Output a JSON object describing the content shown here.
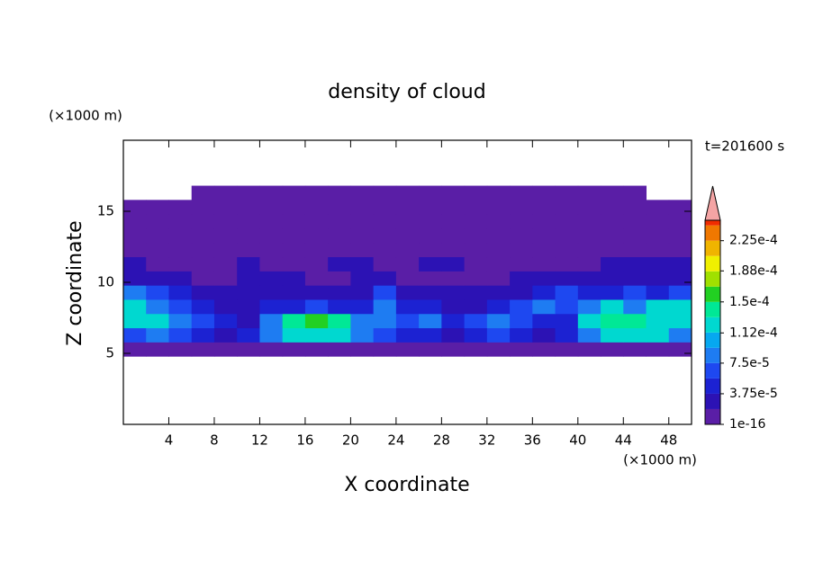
{
  "chart_data": {
    "type": "contour",
    "title": "density of cloud",
    "x_label": "X coordinate",
    "y_label": "Z coordinate",
    "x_unit": "(×1000 m)",
    "y_unit": "(×1000 m)",
    "annotation": "t=201600 s",
    "xlim": [
      0,
      50
    ],
    "ylim": [
      0,
      20
    ],
    "xticks": [
      4,
      8,
      12,
      16,
      20,
      24,
      28,
      32,
      36,
      40,
      44,
      48
    ],
    "yticks": [
      5,
      10,
      15
    ],
    "x": [
      1,
      3,
      5,
      7,
      9,
      11,
      13,
      15,
      17,
      19,
      21,
      23,
      25,
      27,
      29,
      31,
      33,
      35,
      37,
      39,
      41,
      43,
      45,
      47,
      49
    ],
    "y": [
      5.3,
      6.3,
      7.3,
      8.3,
      9.3,
      10.3,
      11.3,
      12.3,
      13.3,
      14.3,
      15.3,
      16.3
    ],
    "z": [
      [
        1e-05,
        1e-05,
        1e-05,
        1e-05,
        1e-05,
        1e-05,
        1e-05,
        1e-05,
        1e-05,
        1e-05,
        1e-05,
        1e-05,
        1e-05,
        1e-05,
        1e-05,
        1e-05,
        1e-05,
        1e-05,
        1e-05,
        1e-05,
        1e-05,
        1e-05,
        1e-05,
        1e-05,
        1e-05
      ],
      [
        7e-05,
        9e-05,
        7e-05,
        5e-05,
        3e-05,
        5e-05,
        9e-05,
        0.00012,
        0.00012,
        0.00012,
        9e-05,
        7e-05,
        5e-05,
        5e-05,
        3e-05,
        5e-05,
        7e-05,
        5e-05,
        3e-05,
        5e-05,
        9e-05,
        0.00012,
        0.00012,
        0.00012,
        9e-05
      ],
      [
        0.00012,
        0.00012,
        9e-05,
        7e-05,
        5e-05,
        3e-05,
        9e-05,
        0.00014,
        0.000155,
        0.00014,
        9e-05,
        9e-05,
        7e-05,
        9e-05,
        5e-05,
        7e-05,
        9e-05,
        7e-05,
        5e-05,
        5e-05,
        0.00012,
        0.00014,
        0.00014,
        0.00012,
        0.00012
      ],
      [
        0.00012,
        9e-05,
        7e-05,
        5e-05,
        3e-05,
        3e-05,
        5e-05,
        5e-05,
        7e-05,
        5e-05,
        5e-05,
        9e-05,
        5e-05,
        5e-05,
        3e-05,
        3e-05,
        5e-05,
        7e-05,
        9e-05,
        7e-05,
        9e-05,
        0.00012,
        9e-05,
        0.00012,
        0.00012
      ],
      [
        9e-05,
        7e-05,
        5e-05,
        3e-05,
        3e-05,
        3e-05,
        3e-05,
        3e-05,
        3e-05,
        3e-05,
        3e-05,
        7e-05,
        3e-05,
        3e-05,
        3e-05,
        3e-05,
        3e-05,
        3e-05,
        5e-05,
        7e-05,
        5e-05,
        5e-05,
        7e-05,
        5e-05,
        7e-05
      ],
      [
        3e-05,
        3e-05,
        3e-05,
        1e-05,
        1e-05,
        3e-05,
        3e-05,
        3e-05,
        1e-05,
        1e-05,
        3e-05,
        3e-05,
        1e-05,
        1e-05,
        1e-05,
        1e-05,
        1e-05,
        3e-05,
        3e-05,
        3e-05,
        3e-05,
        3e-05,
        3e-05,
        3e-05,
        3e-05
      ],
      [
        3e-05,
        1e-05,
        1e-05,
        1e-05,
        1e-05,
        3e-05,
        1e-05,
        1e-05,
        1e-05,
        3e-05,
        3e-05,
        1e-05,
        1e-05,
        3e-05,
        3e-05,
        1e-05,
        1e-05,
        1e-05,
        1e-05,
        1e-05,
        1e-05,
        3e-05,
        3e-05,
        3e-05,
        3e-05
      ],
      [
        1e-05,
        1e-05,
        1e-05,
        1e-05,
        1e-05,
        1e-05,
        1e-05,
        1e-05,
        1e-05,
        1e-05,
        1e-05,
        1e-05,
        1e-05,
        1e-05,
        1e-05,
        1e-05,
        1e-05,
        1e-05,
        1e-05,
        1e-05,
        1e-05,
        1e-05,
        1e-05,
        1e-05,
        1e-05
      ],
      [
        1e-05,
        1e-05,
        1e-05,
        1e-05,
        1e-05,
        1e-05,
        1e-05,
        1e-05,
        1e-05,
        1e-05,
        1e-05,
        1e-05,
        1e-05,
        1e-05,
        1e-05,
        1e-05,
        1e-05,
        1e-05,
        1e-05,
        1e-05,
        1e-05,
        1e-05,
        1e-05,
        1e-05,
        1e-05
      ],
      [
        1e-05,
        1e-05,
        1e-05,
        1e-05,
        1e-05,
        1e-05,
        1e-05,
        1e-05,
        1e-05,
        1e-05,
        1e-05,
        1e-05,
        1e-05,
        1e-05,
        1e-05,
        1e-05,
        1e-05,
        1e-05,
        1e-05,
        1e-05,
        1e-05,
        1e-05,
        1e-05,
        1e-05,
        1e-05
      ],
      [
        1e-05,
        1e-05,
        1e-05,
        1e-05,
        1e-05,
        1e-05,
        1e-05,
        1e-05,
        1e-05,
        1e-05,
        1e-05,
        1e-05,
        1e-05,
        1e-05,
        1e-05,
        1e-05,
        1e-05,
        1e-05,
        1e-05,
        1e-05,
        1e-05,
        1e-05,
        1e-05,
        1e-05,
        1e-05
      ],
      [
        null,
        null,
        null,
        1e-05,
        1e-05,
        1e-05,
        1e-05,
        1e-05,
        1e-05,
        1e-05,
        1e-05,
        1e-05,
        1e-05,
        1e-05,
        1e-05,
        1e-05,
        1e-05,
        1e-05,
        1e-05,
        1e-05,
        1e-05,
        1e-05,
        1e-05,
        null,
        null
      ]
    ],
    "colorbar": {
      "levels": [
        1e-16,
        1.875e-05,
        3.75e-05,
        5.625e-05,
        7.5e-05,
        9.375e-05,
        0.0001125,
        0.00013125,
        0.00015,
        0.00016875,
        0.0001875,
        0.00020625,
        0.000225,
        0.00024375,
        0.00025
      ],
      "colors": [
        "#5a1ea6",
        "#2c12b4",
        "#1c22d2",
        "#1e48f0",
        "#1e7cf2",
        "#06a8f0",
        "#00d8d0",
        "#00e896",
        "#22d022",
        "#a0e000",
        "#f0f000",
        "#f0b400",
        "#f07800",
        "#f02c00"
      ],
      "ticks": [
        1e-16,
        {
          "value": 3.75e-05,
          "label": "3.75e-5"
        },
        {
          "value": 7.5e-05,
          "label": "7.5e-5"
        },
        {
          "value": 0.000112,
          "label": "1.12e-4"
        },
        {
          "value": 0.00015,
          "label": "1.5e-4"
        },
        {
          "value": 0.000188,
          "label": "1.88e-4"
        },
        {
          "value": 0.000225,
          "label": "2.25e-4"
        }
      ],
      "extend_color": "#f4a4a4"
    }
  }
}
